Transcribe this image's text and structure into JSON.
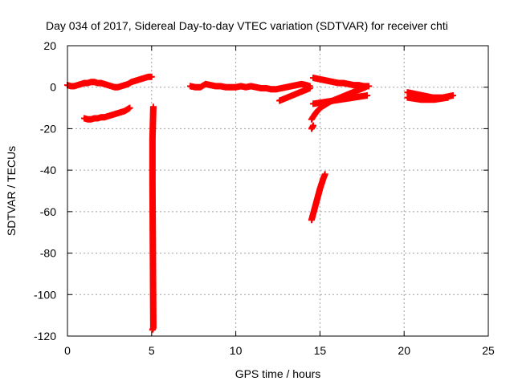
{
  "chart_data": {
    "type": "scatter",
    "title": "Day 034 of 2017, Sidereal Day-to-day VTEC variation (SDTVAR) for receiver chti",
    "xlabel": "GPS time / hours",
    "ylabel": "SDTVAR / TECUs",
    "xlim": [
      0,
      25
    ],
    "ylim": [
      -120,
      20
    ],
    "xticks": [
      0,
      5,
      10,
      15,
      20,
      25
    ],
    "yticks": [
      20,
      0,
      -20,
      -40,
      -60,
      -80,
      -100,
      -120
    ],
    "grid": true,
    "legend": "none",
    "marker_color": "#ff0000",
    "marker": "plus",
    "series": [
      {
        "segments": [
          [
            [
              0.0,
              1.0
            ],
            [
              0.2,
              0.5
            ],
            [
              0.4,
              0.5
            ],
            [
              0.6,
              1.0
            ],
            [
              0.8,
              1.5
            ],
            [
              1.0,
              2.0
            ],
            [
              1.2,
              2.0
            ],
            [
              1.4,
              2.5
            ],
            [
              1.6,
              2.5
            ],
            [
              1.8,
              2.0
            ],
            [
              2.0,
              2.0
            ],
            [
              2.2,
              1.5
            ],
            [
              2.4,
              1.0
            ],
            [
              2.6,
              0.5
            ],
            [
              2.8,
              0.0
            ],
            [
              3.0,
              0.0
            ],
            [
              3.2,
              0.5
            ],
            [
              3.4,
              1.0
            ],
            [
              3.6,
              1.5
            ],
            [
              3.8,
              2.5
            ],
            [
              4.0,
              3.0
            ],
            [
              4.2,
              3.5
            ],
            [
              4.4,
              4.0
            ],
            [
              4.6,
              4.5
            ],
            [
              4.8,
              5.0
            ],
            [
              5.0,
              5.0
            ]
          ],
          [
            [
              1.0,
              -15.0
            ],
            [
              1.2,
              -15.5
            ],
            [
              1.4,
              -15.5
            ],
            [
              1.6,
              -15.0
            ],
            [
              1.8,
              -15.0
            ],
            [
              2.0,
              -14.5
            ],
            [
              2.2,
              -14.5
            ],
            [
              2.4,
              -14.0
            ],
            [
              2.6,
              -13.5
            ],
            [
              2.8,
              -13.0
            ],
            [
              3.0,
              -12.5
            ],
            [
              3.2,
              -12.0
            ],
            [
              3.4,
              -11.5
            ],
            [
              3.6,
              -10.5
            ],
            [
              3.7,
              -10.0
            ]
          ],
          [
            [
              5.1,
              -9.5
            ],
            [
              5.05,
              -25.0
            ],
            [
              5.05,
              -46.0
            ],
            [
              5.1,
              -116.0
            ],
            [
              5.05,
              -117.0
            ]
          ],
          [
            [
              7.3,
              0.5
            ],
            [
              7.6,
              0.0
            ],
            [
              7.9,
              0.0
            ],
            [
              8.2,
              1.5
            ],
            [
              8.5,
              1.0
            ],
            [
              8.8,
              0.5
            ],
            [
              9.1,
              0.5
            ],
            [
              9.4,
              0.0
            ],
            [
              9.7,
              0.0
            ],
            [
              10.0,
              0.0
            ],
            [
              10.3,
              0.5
            ],
            [
              10.6,
              0.0
            ],
            [
              10.9,
              0.5
            ],
            [
              11.2,
              0.0
            ],
            [
              11.5,
              -0.5
            ],
            [
              11.8,
              -0.5
            ],
            [
              12.1,
              -1.0
            ],
            [
              12.4,
              -1.0
            ],
            [
              12.7,
              -0.5
            ],
            [
              13.0,
              0.0
            ],
            [
              13.3,
              0.5
            ],
            [
              13.6,
              1.0
            ],
            [
              13.9,
              1.5
            ],
            [
              14.2,
              1.0
            ],
            [
              14.4,
              0.5
            ]
          ],
          [
            [
              12.6,
              -6.5
            ],
            [
              12.9,
              -5.5
            ],
            [
              13.2,
              -4.5
            ],
            [
              13.5,
              -3.5
            ],
            [
              13.8,
              -2.5
            ],
            [
              14.1,
              -1.5
            ],
            [
              14.4,
              -0.5
            ]
          ],
          [
            [
              14.5,
              -15.5
            ],
            [
              14.7,
              -13.0
            ],
            [
              14.9,
              -11.0
            ],
            [
              15.1,
              -9.5
            ],
            [
              15.3,
              -8.5
            ],
            [
              15.6,
              -7.0
            ],
            [
              15.9,
              -6.0
            ],
            [
              16.2,
              -5.0
            ],
            [
              16.5,
              -4.0
            ],
            [
              16.8,
              -3.0
            ],
            [
              17.1,
              -2.0
            ],
            [
              17.4,
              -1.0
            ],
            [
              17.7,
              0.0
            ],
            [
              17.8,
              0.5
            ]
          ],
          [
            [
              14.6,
              -8.0
            ],
            [
              15.0,
              -7.5
            ],
            [
              15.4,
              -7.0
            ],
            [
              15.8,
              -6.5
            ],
            [
              16.2,
              -6.0
            ],
            [
              16.6,
              -5.5
            ],
            [
              17.0,
              -5.0
            ],
            [
              17.4,
              -4.5
            ],
            [
              17.8,
              -4.0
            ]
          ],
          [
            [
              14.6,
              4.5
            ],
            [
              14.9,
              4.0
            ],
            [
              15.2,
              3.5
            ],
            [
              15.5,
              3.0
            ],
            [
              15.8,
              2.5
            ],
            [
              16.1,
              2.0
            ],
            [
              16.4,
              2.0
            ],
            [
              16.7,
              1.5
            ],
            [
              17.0,
              1.0
            ],
            [
              17.3,
              1.0
            ],
            [
              17.6,
              0.5
            ],
            [
              17.9,
              0.5
            ]
          ],
          [
            [
              14.5,
              -20.0
            ],
            [
              14.6,
              -18.5
            ]
          ],
          [
            [
              14.5,
              -64.0
            ],
            [
              14.6,
              -61.0
            ],
            [
              14.7,
              -58.0
            ],
            [
              14.8,
              -55.0
            ],
            [
              14.9,
              -52.0
            ],
            [
              15.0,
              -49.0
            ],
            [
              15.1,
              -46.5
            ],
            [
              15.2,
              -44.0
            ],
            [
              15.3,
              -42.0
            ]
          ],
          [
            [
              20.2,
              -2.5
            ],
            [
              20.5,
              -3.0
            ],
            [
              20.8,
              -3.5
            ],
            [
              21.1,
              -4.0
            ],
            [
              21.4,
              -4.5
            ],
            [
              21.7,
              -5.0
            ],
            [
              22.0,
              -5.0
            ],
            [
              22.3,
              -5.0
            ],
            [
              22.6,
              -4.5
            ],
            [
              22.9,
              -4.0
            ]
          ],
          [
            [
              20.2,
              -5.0
            ],
            [
              20.6,
              -5.5
            ],
            [
              21.0,
              -6.0
            ],
            [
              21.4,
              -6.0
            ],
            [
              21.8,
              -6.0
            ],
            [
              22.2,
              -5.5
            ],
            [
              22.6,
              -5.0
            ]
          ]
        ]
      }
    ]
  }
}
